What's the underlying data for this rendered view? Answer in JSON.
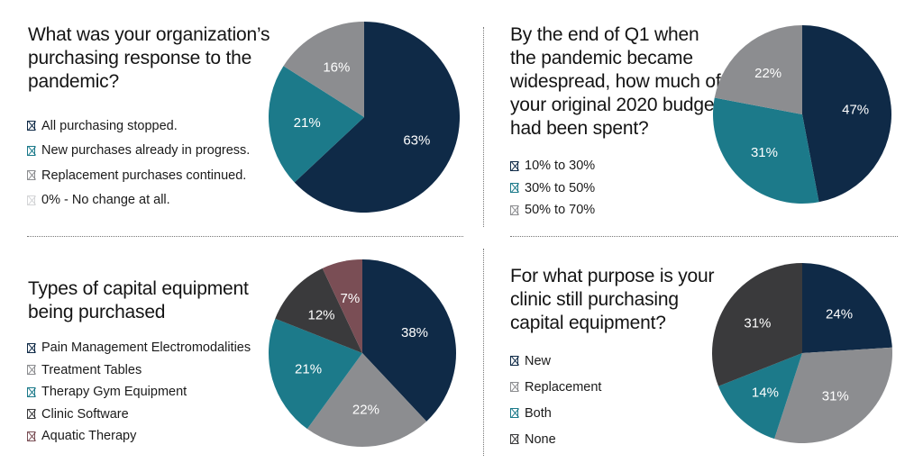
{
  "colors": {
    "navy": "#0f2a47",
    "teal": "#1c7a8a",
    "gray": "#8c8d90",
    "lightgray": "#d4d5d7",
    "charcoal": "#3a3a3c",
    "mauve": "#7a4e55"
  },
  "chart_data": [
    {
      "type": "pie",
      "title": "What was your organization’s purchasing response to the pandemic?",
      "legend_placement": "left",
      "categories": [
        "All purchasing stopped.",
        "New purchases already in progress.",
        "Replacement purchases continued.",
        "0% - No change at all."
      ],
      "values": [
        63,
        21,
        16,
        0
      ],
      "labels": [
        "63%",
        "21%",
        "16%",
        ""
      ],
      "colors": [
        "#0f2a47",
        "#1c7a8a",
        "#8c8d90",
        "#d4d5d7"
      ]
    },
    {
      "type": "pie",
      "title": "By the end of Q1 when the pandemic became widespread, how much of your original 2020 budget had been spent?",
      "legend_placement": "left",
      "categories": [
        "10% to 30%",
        "30% to 50%",
        "50% to 70%"
      ],
      "values": [
        47,
        31,
        22
      ],
      "labels": [
        "47%",
        "31%",
        "22%"
      ],
      "colors": [
        "#0f2a47",
        "#1c7a8a",
        "#8c8d90"
      ]
    },
    {
      "type": "pie",
      "title": "Types of capital equipment being purchased",
      "legend_placement": "left",
      "categories": [
        "Pain Management Electromodalities",
        "Treatment Tables",
        "Therapy Gym Equipment",
        "Clinic Software",
        "Aquatic Therapy"
      ],
      "values": [
        38,
        22,
        21,
        12,
        7
      ],
      "labels": [
        "38%",
        "22%",
        "21%",
        "12%",
        "7%"
      ],
      "colors": [
        "#0f2a47",
        "#8c8d90",
        "#1c7a8a",
        "#3a3a3c",
        "#7a4e55"
      ]
    },
    {
      "type": "pie",
      "title": "For what purpose is your clinic still purchasing capital equipment?",
      "legend_placement": "left",
      "categories": [
        "New",
        "Replacement",
        "Both",
        "None"
      ],
      "values": [
        24,
        31,
        14,
        31
      ],
      "labels": [
        "24%",
        "31%",
        "14%",
        "31%"
      ],
      "colors": [
        "#0f2a47",
        "#8c8d90",
        "#1c7a8a",
        "#3a3a3c"
      ]
    }
  ]
}
